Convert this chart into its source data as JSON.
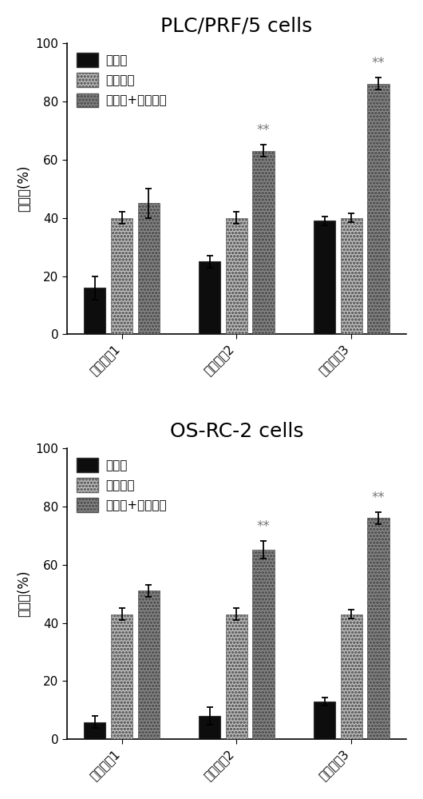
{
  "chart1": {
    "title": "PLC/PRF/5 cells",
    "groups": [
      "联合用药1",
      "联合用药2",
      "联合用药3"
    ],
    "capsaicin_values": [
      16,
      25,
      39
    ],
    "capsaicin_errors": [
      4,
      2,
      1.5
    ],
    "sorafenib_values": [
      40,
      40,
      40
    ],
    "sorafenib_errors": [
      2,
      2,
      1.5
    ],
    "combo_values": [
      45,
      63,
      86
    ],
    "combo_errors": [
      5,
      2,
      2
    ],
    "sig_groups": [
      1,
      2
    ],
    "ylabel": "抑制率(%)"
  },
  "chart2": {
    "title": "OS-RC-2 cells",
    "groups": [
      "联合用药1",
      "联合用药2",
      "联合用药3"
    ],
    "capsaicin_values": [
      6,
      8,
      13
    ],
    "capsaicin_errors": [
      2,
      3,
      1.5
    ],
    "sorafenib_values": [
      43,
      43,
      43
    ],
    "sorafenib_errors": [
      2,
      2,
      1.5
    ],
    "combo_values": [
      51,
      65,
      76
    ],
    "combo_errors": [
      2,
      3,
      2
    ],
    "sig_groups": [
      1,
      2
    ],
    "ylabel": "抑制率(%)"
  },
  "legend_cap": "辣椒素",
  "legend_sor": "索拉非尼",
  "legend_combo": "辣椒素+索拉非尼",
  "color_cap": "#0d0d0d",
  "color_sor_face": "#c0c0c0",
  "color_combo_face": "#888888",
  "bar_width": 0.22,
  "title_fontsize": 18,
  "label_fontsize": 12,
  "tick_fontsize": 11,
  "legend_fontsize": 11,
  "annot_fontsize": 12,
  "sig_label": "**"
}
